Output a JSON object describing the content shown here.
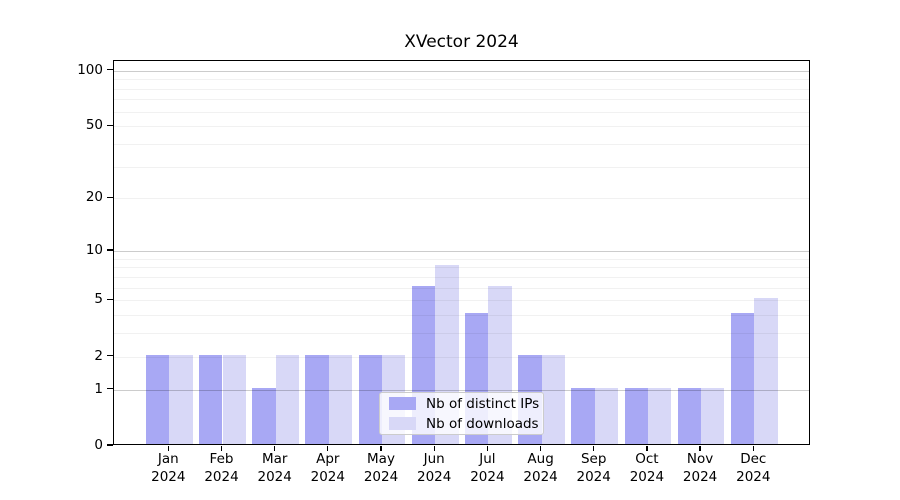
{
  "chart_data": {
    "type": "bar",
    "title": "XVector 2024",
    "categories": [
      "Jan",
      "Feb",
      "Mar",
      "Apr",
      "May",
      "Jun",
      "Jul",
      "Aug",
      "Sep",
      "Oct",
      "Nov",
      "Dec"
    ],
    "year_label": "2024",
    "series": [
      {
        "name": "Nb of distinct IPs",
        "color": "#a8a8f4",
        "values": [
          2,
          2,
          1,
          2,
          2,
          6,
          4,
          2,
          1,
          1,
          1,
          4
        ]
      },
      {
        "name": "Nb of downloads",
        "color": "#d8d8f7",
        "values": [
          2,
          2,
          2,
          2,
          2,
          8,
          6,
          2,
          1,
          1,
          1,
          5
        ]
      }
    ],
    "yscale": "log1p",
    "ylim": [
      0,
      115
    ],
    "ytick_values": [
      0,
      1,
      2,
      5,
      10,
      20,
      50,
      100
    ],
    "ytick_labels": [
      "0",
      "1",
      "2",
      "5",
      "10",
      "20",
      "50",
      "100"
    ],
    "major_grid_values": [
      1,
      10,
      100
    ],
    "minor_grid_values": [
      2,
      3,
      4,
      5,
      6,
      7,
      8,
      9,
      20,
      30,
      40,
      50,
      60,
      70,
      80,
      90
    ],
    "grid": true,
    "legend_position": "lower center"
  }
}
